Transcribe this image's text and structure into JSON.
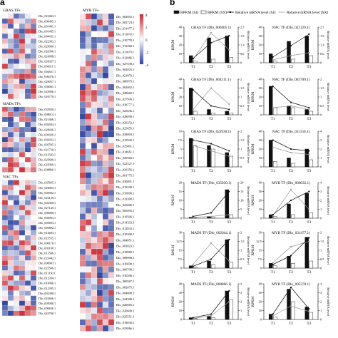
{
  "panel_labels": {
    "a": "a",
    "b": "b"
  },
  "colors": {
    "high": "#c62832",
    "mid": "#ffffff",
    "low": "#2a3f9a",
    "bar_sj": "#111111",
    "bar_sx": "#ffffff"
  },
  "heatmap": {
    "colorbar_ticks": [
      "4",
      "2",
      "0",
      "-2",
      "-4"
    ],
    "groups": [
      {
        "title": "GRAS TFs",
        "genes": [
          "Dlo_023463.1",
          "Dlo_000405.1",
          "Dlo_001401.1",
          "Dlo_001405.1",
          "Dlo_004431.1",
          "Dlo_022303.1",
          "Dlo_029000.1",
          "Dlo_020300.1",
          "Dlo_024998.1",
          "Dlo_028337.1",
          "Dlo_004311.1",
          "Dlo_002637.1",
          "Dlo_006370.1",
          "Dlo_029057.1",
          "Dlo_004061.1",
          "Dlo_025906.1",
          "Dlo_026770.1"
        ]
      },
      {
        "title": "MADs TFs",
        "genes": [
          "Dlo_035930.1",
          "Dlo_008014.1",
          "Dlo_021466.1",
          "Dlo_002044.1",
          "Dlo_028436.1",
          "Dlo_003026.1",
          "Dlo_002033.1",
          "Dlo_005595.1",
          "Dlo_021730.1",
          "Dlo_011583.1",
          "Dlo_025600.1",
          "Dlo_025069.1",
          "Dlo_008866.1"
        ]
      },
      {
        "title": "NAC TFs",
        "genes": [
          "Dlo_035605.1",
          "Dlo_026903.1",
          "Dlo_005902.1",
          "Dlo_022129.1",
          "Dlo_002300.1",
          "Dlo_027145.1",
          "Dlo_006000.1",
          "Dlo_005093.1",
          "Dlo_005693.1",
          "Dlo_005892.1",
          "Dlo_012603.1",
          "Dlo_025555.1",
          "Dlo_000176.1",
          "Dlo_003100.1",
          "Dlo_015506.1",
          "Dlo_022442.1",
          "Dlo_000903.1",
          "Dlo_025506.1",
          "Dlo_011150.1",
          "Dlo_012394.1",
          "Dlo_016000.1",
          "Dlo_012395.1",
          "Dlo_002390.1",
          "Dlo_022666.1",
          "Dlo_005000.1",
          "Dlo_000656.1",
          "Dlo_024700.1"
        ]
      }
    ],
    "myb_title": "MYB TFs",
    "myb_genes": [
      "Dlo_002855.1",
      "Dlo_002723.1",
      "Dlo_031477.1",
      "Dlo_011870.1",
      "Dlo_010778.1",
      "Dlo_012260.1",
      "Dlo_011679.1",
      "Dlo_012066.1",
      "Dlo_027539.1",
      "Dlo_002025.1",
      "Dlo_021870.1",
      "Dlo_000079.1",
      "Dlo_002002.1",
      "Dlo_028660.1",
      "Dlo_027936.1",
      "Dlo_018777.1",
      "Dlo_025636.1",
      "Dlo_028059.1",
      "Dlo_026252.1",
      "Dlo_025055.1",
      "Dlo_028003.1",
      "Dlo_015942.1",
      "Dlo_025001.1",
      "Dlo_014661.1",
      "Dlo_020583.1",
      "Dlo_022527.1",
      "Dlo_020356.1",
      "Dlo_001775.1",
      "Dlo_030001.1",
      "Dlo_012330.1",
      "Dlo_010698.1",
      "Dlo_019300.1",
      "Dlo_025606.1",
      "Dlo_005095.1",
      "Dlo_010506.1",
      "Dlo_014333.1",
      "Dlo_012033.1",
      "Dlo_010300.1",
      "Dlo_004051.1",
      "Dlo_003023.1",
      "Dlo_010060.1",
      "Dlo_009998.1",
      "Dlo_016690.1",
      "Dlo_006708.1",
      "Dlo_010206.1",
      "Dlo_000567.1",
      "Dlo_002075.1",
      "Dlo_004008.1",
      "Dlo_024300.1",
      "Dlo_020665.1",
      "Dlo_020600.1",
      "Dlo_025551.1",
      "Dlo_019030.1",
      "Dlo_023066.1"
    ]
  },
  "bar_legend": {
    "rpkm_sj": "RPKM (SJ)",
    "rpkm_sx": "RPKM (SX)",
    "rel_sj": "Relative mRNA level (SJ)",
    "rel_sx": "Relative mRNA level (SX)"
  },
  "chart_data": [
    {
      "type": "bar",
      "title": "GRAS TF (Dlo_000405.1)",
      "categories": [
        "T1",
        "T2",
        "T3"
      ],
      "ylabel": "RPKM",
      "y2label": "Relative mRNA level",
      "ylim": [
        0,
        40
      ],
      "y2lim": [
        0,
        2.5
      ],
      "series": [
        {
          "name": "RPKM (SJ)",
          "values": [
            8,
            28,
            30
          ]
        },
        {
          "name": "RPKM (SX)",
          "values": [
            2,
            4,
            6
          ]
        },
        {
          "name": "Relative mRNA level (SJ)",
          "values": [
            0.3,
            1.4,
            1.9
          ]
        },
        {
          "name": "Relative mRNA level (SX)",
          "values": [
            0.2,
            2.1,
            0.9
          ]
        }
      ]
    },
    {
      "type": "bar",
      "title": "NAC TF (Dlo_022129.1)",
      "categories": [
        "T1",
        "T2",
        "T3"
      ],
      "ylabel": "RPKM",
      "y2label": "Relative mRNA level",
      "ylim": [
        0,
        40
      ],
      "y2lim": [
        0,
        2.5
      ],
      "series": [
        {
          "name": "RPKM (SJ)",
          "values": [
            10,
            24,
            30
          ]
        },
        {
          "name": "RPKM (SX)",
          "values": [
            2,
            4,
            8
          ]
        },
        {
          "name": "Relative mRNA level (SJ)",
          "values": [
            0.4,
            1.2,
            2.0
          ]
        },
        {
          "name": "Relative mRNA level (SX)",
          "values": [
            0.2,
            0.5,
            0.7
          ]
        }
      ]
    },
    {
      "type": "bar",
      "title": "GRAS TF (Dlo_004311.1)",
      "categories": [
        "T1",
        "T2",
        "T3"
      ],
      "ylabel": "RPKM",
      "y2label": "Relative mRNA level",
      "ylim": [
        0,
        40
      ],
      "y2lim": [
        0,
        2.0
      ],
      "series": [
        {
          "name": "RPKM (SJ)",
          "values": [
            30,
            6,
            4
          ]
        },
        {
          "name": "RPKM (SX)",
          "values": [
            4,
            2,
            2
          ]
        },
        {
          "name": "Relative mRNA level (SJ)",
          "values": [
            1.4,
            0.5,
            0.3
          ]
        },
        {
          "name": "Relative mRNA level (SX)",
          "values": [
            0.3,
            1.5,
            0.6
          ]
        }
      ]
    },
    {
      "type": "bar",
      "title": "NAC TF (Dlo_003709.1)",
      "categories": [
        "T1",
        "T2",
        "T3"
      ],
      "ylabel": "RPKM",
      "y2label": "Relative mRNA level",
      "ylim": [
        0,
        40
      ],
      "y2lim": [
        0,
        2.0
      ],
      "series": [
        {
          "name": "RPKM (SJ)",
          "values": [
            32,
            10,
            6
          ]
        },
        {
          "name": "RPKM (SX)",
          "values": [
            8,
            8,
            4
          ]
        },
        {
          "name": "Relative mRNA level (SJ)",
          "values": [
            1.6,
            0.7,
            0.4
          ]
        },
        {
          "name": "Relative mRNA level (SX)",
          "values": [
            0.4,
            0.5,
            0.3
          ]
        }
      ]
    },
    {
      "type": "bar",
      "title": "GRAS TF (Dlo_022930.1)",
      "categories": [
        "T1",
        "T2",
        "T3"
      ],
      "ylabel": "RPKM",
      "y2label": "Relative mRNA level",
      "ylim": [
        0,
        10
      ],
      "y2lim": [
        0,
        2.0
      ],
      "series": [
        {
          "name": "RPKM (SJ)",
          "values": [
            8,
            6,
            4
          ]
        },
        {
          "name": "RPKM (SX)",
          "values": [
            6,
            5,
            3
          ]
        },
        {
          "name": "Relative mRNA level (SJ)",
          "values": [
            1.5,
            1.3,
            0.9
          ]
        },
        {
          "name": "Relative mRNA level (SX)",
          "values": [
            1.2,
            0.9,
            0.6
          ]
        }
      ]
    },
    {
      "type": "bar",
      "title": "NAC TF (Dlo_011150.1)",
      "categories": [
        "T1",
        "T2",
        "T3"
      ],
      "ylabel": "RPKM",
      "y2label": "Relative mRNA level",
      "ylim": [
        0,
        40
      ],
      "y2lim": [
        0,
        4
      ],
      "series": [
        {
          "name": "RPKM (SJ)",
          "values": [
            30,
            10,
            20
          ]
        },
        {
          "name": "RPKM (SX)",
          "values": [
            6,
            4,
            8
          ]
        },
        {
          "name": "Relative mRNA level (SJ)",
          "values": [
            3.0,
            2.0,
            1.8
          ]
        },
        {
          "name": "Relative mRNA level (SX)",
          "values": [
            2.2,
            1.6,
            1.4
          ]
        }
      ]
    },
    {
      "type": "bar",
      "title": "MADS TF (Dlo_035930.1)",
      "categories": [
        "T1",
        "T2",
        "T3"
      ],
      "ylabel": "RPKM",
      "y2label": "Relative mRNA level",
      "ylim": [
        0,
        20
      ],
      "y2lim": [
        0,
        20
      ],
      "series": [
        {
          "name": "RPKM (SJ)",
          "values": [
            0.5,
            1,
            16
          ]
        },
        {
          "name": "RPKM (SX)",
          "values": [
            0.3,
            0.5,
            2
          ]
        },
        {
          "name": "Relative mRNA level (SJ)",
          "values": [
            1,
            3,
            15
          ]
        },
        {
          "name": "Relative mRNA level (SX)",
          "values": [
            0.5,
            1,
            2
          ]
        }
      ]
    },
    {
      "type": "bar",
      "title": "MYB TF (Dlo_006032.1)",
      "categories": [
        "T1",
        "T2",
        "T3"
      ],
      "ylabel": "RPKM",
      "y2label": "Relative mRNA level",
      "ylim": [
        0,
        40
      ],
      "y2lim": [
        0,
        4
      ],
      "series": [
        {
          "name": "RPKM (SJ)",
          "values": [
            4,
            16,
            28
          ]
        },
        {
          "name": "RPKM (SX)",
          "values": [
            2,
            4,
            6
          ]
        },
        {
          "name": "Relative mRNA level (SJ)",
          "values": [
            0.4,
            2.0,
            3.0
          ]
        },
        {
          "name": "Relative mRNA level (SX)",
          "values": [
            0.3,
            3.2,
            1.0
          ]
        }
      ]
    },
    {
      "type": "bar",
      "title": "MADS TF (Dlo_002044.1)",
      "categories": [
        "T1",
        "T2",
        "T3"
      ],
      "ylabel": "RPKM",
      "y2label": "Relative mRNA level",
      "ylim": [
        0,
        30
      ],
      "y2lim": [
        0,
        2.0
      ],
      "series": [
        {
          "name": "RPKM (SJ)",
          "values": [
            2,
            6,
            24
          ]
        },
        {
          "name": "RPKM (SX)",
          "values": [
            1,
            3,
            5
          ]
        },
        {
          "name": "Relative mRNA level (SJ)",
          "values": [
            0.1,
            0.5,
            1.6
          ]
        },
        {
          "name": "Relative mRNA level (SX)",
          "values": [
            0.2,
            1.4,
            0.4
          ]
        }
      ]
    },
    {
      "type": "bar",
      "title": "MYB TF (Dlo_031477.1)",
      "categories": [
        "T1",
        "T2",
        "T3"
      ],
      "ylabel": "RPKM",
      "y2label": "Relative mRNA level",
      "ylim": [
        0,
        30
      ],
      "y2lim": [
        0,
        2.0
      ],
      "series": [
        {
          "name": "RPKM (SJ)",
          "values": [
            4,
            10,
            26
          ]
        },
        {
          "name": "RPKM (SX)",
          "values": [
            2,
            4,
            6
          ]
        },
        {
          "name": "Relative mRNA level (SJ)",
          "values": [
            0.2,
            0.7,
            1.7
          ]
        },
        {
          "name": "Relative mRNA level (SX)",
          "values": [
            0.3,
            1.2,
            1.5
          ]
        }
      ]
    },
    {
      "type": "bar",
      "title": "MADS TF (Dlo_008866.1)",
      "categories": [
        "T1",
        "T2",
        "T3"
      ],
      "ylabel": "RPKM",
      "y2label": "Relative mRNA level",
      "ylim": [
        0,
        40
      ],
      "y2lim": [
        0,
        4
      ],
      "series": [
        {
          "name": "RPKM (SJ)",
          "values": [
            2,
            4,
            32
          ]
        },
        {
          "name": "RPKM (SX)",
          "values": [
            1,
            2,
            22
          ]
        },
        {
          "name": "Relative mRNA level (SJ)",
          "values": [
            0.2,
            0.6,
            3.2
          ]
        },
        {
          "name": "Relative mRNA level (SX)",
          "values": [
            0.1,
            0.4,
            2.0
          ]
        }
      ]
    },
    {
      "type": "bar",
      "title": "MYB TF (Dlo_005378.1)",
      "categories": [
        "T1",
        "T2",
        "T3"
      ],
      "ylabel": "RPKM",
      "y2label": "Relative mRNA level",
      "ylim": [
        0,
        40
      ],
      "y2lim": [
        0,
        4
      ],
      "series": [
        {
          "name": "RPKM (SJ)",
          "values": [
            6,
            34,
            14
          ]
        },
        {
          "name": "RPKM (SX)",
          "values": [
            3,
            20,
            8
          ]
        },
        {
          "name": "Relative mRNA level (SJ)",
          "values": [
            0.6,
            3.6,
            1.2
          ]
        },
        {
          "name": "Relative mRNA level (SX)",
          "values": [
            0.4,
            1.5,
            0.9
          ]
        }
      ]
    }
  ]
}
